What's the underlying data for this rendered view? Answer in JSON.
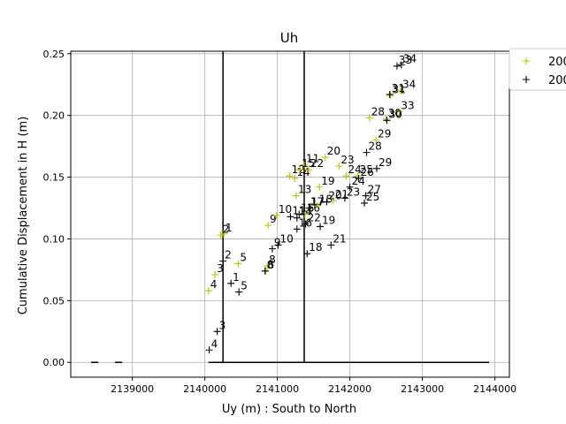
{
  "chart_data": {
    "type": "scatter",
    "title": "Uh",
    "xlabel": "Uy (m) : South to North",
    "ylabel": "Cumulative Displacement in H (m)",
    "xlim": [
      2138150,
      2144200
    ],
    "ylim": [
      -0.012,
      0.252
    ],
    "xticks": [
      2139000,
      2140000,
      2141000,
      2142000,
      2143000,
      2144000
    ],
    "xtick_labels": [
      "2139000",
      "2140000",
      "2141000",
      "2142000",
      "2143000",
      "2144000"
    ],
    "yticks": [
      0.0,
      0.05,
      0.1,
      0.15,
      0.2,
      0.25
    ],
    "ytick_labels": [
      "0.00",
      "0.05",
      "0.10",
      "0.15",
      "0.20",
      "0.25"
    ],
    "grid": true,
    "legend_position": "top-right (partially cut off)",
    "colors": {
      "series1": "#bfbf00",
      "series2": "#000000",
      "lines": "#000000",
      "grid": "#b0b0b0"
    },
    "series": [
      {
        "name": "200",
        "marker": "+",
        "color": "#bfbf00",
        "points": [
          {
            "x": 2140260,
            "y": 0.104,
            "label": "1"
          },
          {
            "x": 2140220,
            "y": 0.103,
            "label": "2"
          },
          {
            "x": 2140140,
            "y": 0.071,
            "label": "3"
          },
          {
            "x": 2140050,
            "y": 0.058,
            "label": "4"
          },
          {
            "x": 2140460,
            "y": 0.08,
            "label": "5"
          },
          {
            "x": 2140840,
            "y": 0.074,
            "label": "6"
          },
          {
            "x": 2140860,
            "y": 0.078,
            "label": "8"
          },
          {
            "x": 2140870,
            "y": 0.111,
            "label": "9"
          },
          {
            "x": 2140990,
            "y": 0.119,
            "label": "10"
          },
          {
            "x": 2141370,
            "y": 0.16,
            "label": "11"
          },
          {
            "x": 2141170,
            "y": 0.151,
            "label": "12"
          },
          {
            "x": 2141260,
            "y": 0.135,
            "label": "13"
          },
          {
            "x": 2141240,
            "y": 0.149,
            "label": "14"
          },
          {
            "x": 2141310,
            "y": 0.156,
            "label": "15"
          },
          {
            "x": 2141380,
            "y": 0.12,
            "label": "16"
          },
          {
            "x": 2141430,
            "y": 0.125,
            "label": "17"
          },
          {
            "x": 2141550,
            "y": 0.127,
            "label": "18"
          },
          {
            "x": 2141580,
            "y": 0.142,
            "label": "19"
          },
          {
            "x": 2141660,
            "y": 0.166,
            "label": "20"
          },
          {
            "x": 2141770,
            "y": 0.131,
            "label": "21"
          },
          {
            "x": 2141430,
            "y": 0.156,
            "label": "22"
          },
          {
            "x": 2141850,
            "y": 0.159,
            "label": "23"
          },
          {
            "x": 2141950,
            "y": 0.151,
            "label": "24"
          },
          {
            "x": 2142110,
            "y": 0.151,
            "label": "25"
          },
          {
            "x": 2142270,
            "y": 0.198,
            "label": "28"
          },
          {
            "x": 2142360,
            "y": 0.18,
            "label": "29"
          },
          {
            "x": 2142500,
            "y": 0.197,
            "label": "30"
          },
          {
            "x": 2142560,
            "y": 0.216,
            "label": "31"
          },
          {
            "x": 2142680,
            "y": 0.203,
            "label": "33"
          },
          {
            "x": 2142700,
            "y": 0.22,
            "label": "34"
          }
        ]
      },
      {
        "name": "200",
        "marker": "+",
        "color": "#000000",
        "points": [
          {
            "x": 2140360,
            "y": 0.064,
            "label": "1"
          },
          {
            "x": 2140250,
            "y": 0.082,
            "label": "2"
          },
          {
            "x": 2140170,
            "y": 0.025,
            "label": "3"
          },
          {
            "x": 2140060,
            "y": 0.01,
            "label": "4"
          },
          {
            "x": 2140470,
            "y": 0.057,
            "label": "5"
          },
          {
            "x": 2140830,
            "y": 0.074,
            "label": "8"
          },
          {
            "x": 2140930,
            "y": 0.092,
            "label": "9"
          },
          {
            "x": 2141010,
            "y": 0.095,
            "label": "10"
          },
          {
            "x": 2141180,
            "y": 0.118,
            "label": "11"
          },
          {
            "x": 2141270,
            "y": 0.117,
            "label": "14"
          },
          {
            "x": 2141300,
            "y": 0.12,
            "label": "15"
          },
          {
            "x": 2141270,
            "y": 0.108,
            "label": "16"
          },
          {
            "x": 2141440,
            "y": 0.125,
            "label": "17"
          },
          {
            "x": 2141410,
            "y": 0.088,
            "label": "18"
          },
          {
            "x": 2141590,
            "y": 0.11,
            "label": "19"
          },
          {
            "x": 2141680,
            "y": 0.13,
            "label": "20"
          },
          {
            "x": 2141740,
            "y": 0.095,
            "label": "21"
          },
          {
            "x": 2141390,
            "y": 0.112,
            "label": "22"
          },
          {
            "x": 2141930,
            "y": 0.133,
            "label": "23"
          },
          {
            "x": 2142000,
            "y": 0.142,
            "label": "24"
          },
          {
            "x": 2142200,
            "y": 0.129,
            "label": "25"
          },
          {
            "x": 2142120,
            "y": 0.149,
            "label": "26"
          },
          {
            "x": 2142220,
            "y": 0.135,
            "label": "27"
          },
          {
            "x": 2142230,
            "y": 0.17,
            "label": "28"
          },
          {
            "x": 2142370,
            "y": 0.157,
            "label": "29"
          },
          {
            "x": 2142510,
            "y": 0.196,
            "label": "30"
          },
          {
            "x": 2142550,
            "y": 0.217,
            "label": "31"
          },
          {
            "x": 2142650,
            "y": 0.24,
            "label": "33"
          },
          {
            "x": 2142710,
            "y": 0.241,
            "label": "34"
          }
        ]
      }
    ],
    "reference_lines": [
      {
        "orientation": "vertical",
        "x": 2140250,
        "y_from": 0.0,
        "y_to": 0.252
      },
      {
        "orientation": "vertical",
        "x": 2141370,
        "y_from": 0.0,
        "y_to": 0.252
      },
      {
        "orientation": "horizontal",
        "y": 0.0,
        "x_from": 2140050,
        "x_to": 2143920
      },
      {
        "orientation": "horizontal",
        "y": 0.0,
        "x_from": 2138430,
        "x_to": 2138530
      },
      {
        "orientation": "horizontal",
        "y": 0.0,
        "x_from": 2138760,
        "x_to": 2138860
      }
    ]
  }
}
